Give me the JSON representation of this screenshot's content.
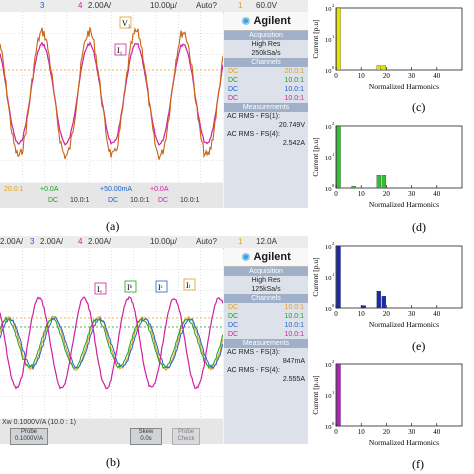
{
  "captions": {
    "a": "(a)",
    "b": "(b)",
    "c": "(c)",
    "d": "(d)",
    "e": "(e)",
    "f": "(f)"
  },
  "scope_a": {
    "topbar": {
      "ch3": "3",
      "ch4": "4",
      "ch4_scale": "2.00A/",
      "timebase": "10.00µ/",
      "mode": "Auto?",
      "trig_ch": "1",
      "trig_level": "60.0V"
    },
    "brand": "Agilent",
    "acq_header": "Acquisition",
    "acq_mode": "High Res",
    "acq_rate": "250kSa/s",
    "channels_header": "Channels",
    "channels": [
      {
        "coupling": "DC",
        "ratio": "20.0:1",
        "color": "#e0a020"
      },
      {
        "coupling": "DC",
        "ratio": "10.0:1",
        "color": "#20a020"
      },
      {
        "coupling": "DC",
        "ratio": "10.0:1",
        "color": "#2060d0"
      },
      {
        "coupling": "DC",
        "ratio": "10.0:1",
        "color": "#d020a0"
      }
    ],
    "meas_header": "Measurements",
    "measurements": [
      {
        "label": "AC RMS - FS(1):",
        "value": "20.749V"
      },
      {
        "label": "AC RMS - FS(4):",
        "value": "2.542A"
      }
    ],
    "bottom": [
      {
        "offset": "+0.0A",
        "ratio": "10.0:1",
        "dc": "DC",
        "color": "#20a020"
      },
      {
        "offset": "+50.00mA",
        "ratio": "10.0:1",
        "dc": "DC",
        "color": "#2060d0"
      },
      {
        "offset": "+0.0A",
        "ratio": "10.0:1",
        "dc": "DC",
        "color": "#d020a0"
      }
    ],
    "bottom_left": "20.0:1",
    "markers": [
      "V₁",
      "I₁"
    ]
  },
  "scope_b": {
    "topbar": {
      "ch2_scale": "2.00A/",
      "ch3": "3",
      "ch3_scale": "2.00A/",
      "ch4": "4",
      "ch4_scale": "2.00A/",
      "timebase": "10.00µ/",
      "mode": "Auto?",
      "trig_ch": "1",
      "trig_level": "12.0A"
    },
    "brand": "Agilent",
    "acq_header": "Acquisition",
    "acq_mode": "High Res",
    "acq_rate": "125kSa/s",
    "channels_header": "Channels",
    "channels": [
      {
        "coupling": "DC",
        "ratio": "10.0:1",
        "color": "#e0a020"
      },
      {
        "coupling": "DC",
        "ratio": "10.0:1",
        "color": "#20a020"
      },
      {
        "coupling": "DC",
        "ratio": "10.0:1",
        "color": "#2060d0"
      },
      {
        "coupling": "DC",
        "ratio": "10.0:1",
        "color": "#d020a0"
      }
    ],
    "meas_header": "Measurements",
    "measurements": [
      {
        "label": "AC RMS - FS(3):",
        "value": "847mA"
      },
      {
        "label": "AC RMS - FS(4):",
        "value": "2.555A"
      }
    ],
    "probe_line": "Xw 0.1000V/A (10.0 : 1)",
    "buttons": [
      {
        "title": "Probe",
        "value": "0.1000V/A"
      },
      {
        "title": "Skew",
        "value": "0.0s"
      },
      {
        "title": "Probe",
        "value": "Check"
      }
    ],
    "markers": [
      "Iₐ",
      "Iᵇ",
      "Iᶜ",
      "Iₗ"
    ]
  },
  "chart_data": [
    {
      "id": "c",
      "type": "bar",
      "ylabel": "Current [p.u]",
      "xlabel": "Normalized Harmonics",
      "yscale": "log",
      "ylim_exp": [
        0,
        2
      ],
      "xlim": [
        0,
        50
      ],
      "xticks": [
        0,
        10,
        20,
        30,
        40
      ],
      "series": [
        {
          "color": "#e8e000",
          "x": [
            1,
            17,
            19
          ],
          "y": [
            100,
            1.4,
            1.4
          ]
        }
      ]
    },
    {
      "id": "d",
      "type": "bar",
      "ylabel": "Current [p.u]",
      "xlabel": "Normalized Harmonics",
      "yscale": "log",
      "ylim_exp": [
        0,
        2
      ],
      "xlim": [
        0,
        50
      ],
      "xticks": [
        0,
        10,
        20,
        30,
        40
      ],
      "series": [
        {
          "color": "#30c030",
          "x": [
            1,
            7,
            17,
            19
          ],
          "y": [
            100,
            1.15,
            2.6,
            2.6
          ]
        }
      ]
    },
    {
      "id": "e",
      "type": "bar",
      "ylabel": "Current [p.u]",
      "xlabel": "Normalized Harmonics",
      "yscale": "log",
      "ylim_exp": [
        0,
        2
      ],
      "xlim": [
        0,
        50
      ],
      "xticks": [
        0,
        10,
        20,
        30,
        40
      ],
      "series": [
        {
          "color": "#1a2ab0",
          "x": [
            1,
            11,
            17,
            19
          ],
          "y": [
            100,
            1.2,
            3.5,
            2.4
          ]
        }
      ]
    },
    {
      "id": "f",
      "type": "bar",
      "ylabel": "Current [p.u]",
      "xlabel": "Normalized Harmonics",
      "yscale": "log",
      "ylim_exp": [
        0,
        2
      ],
      "xlim": [
        0,
        50
      ],
      "xticks": [
        0,
        10,
        20,
        30,
        40
      ],
      "series": [
        {
          "color": "#b020c0",
          "x": [
            1
          ],
          "y": [
            100
          ]
        }
      ]
    }
  ]
}
